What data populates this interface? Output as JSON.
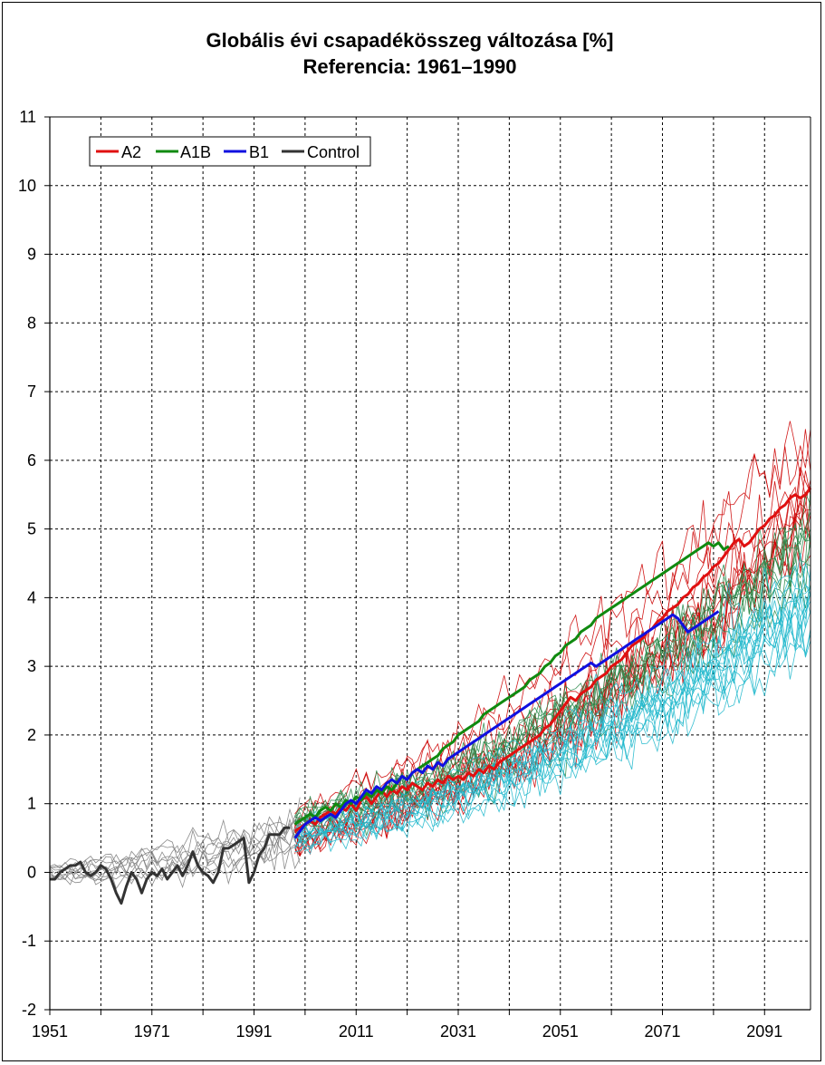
{
  "chart_data": {
    "type": "line",
    "title": "Globális évi csapadékösszeg változása [%]",
    "subtitle": "Referencia: 1961–1990",
    "xlabel": "",
    "ylabel": "",
    "xlim": [
      1951,
      2100
    ],
    "ylim": [
      -2,
      11
    ],
    "x_ticks": [
      1951,
      1961,
      1971,
      1981,
      1991,
      2001,
      2011,
      2021,
      2031,
      2041,
      2051,
      2061,
      2071,
      2081,
      2091
    ],
    "x_tick_labels": [
      "1951",
      "1971",
      "1991",
      "2011",
      "2031",
      "2051",
      "2071",
      "2091"
    ],
    "x_tick_label_values": [
      1951,
      1971,
      1991,
      2011,
      2031,
      2051,
      2071,
      2091
    ],
    "y_ticks": [
      -2,
      -1,
      0,
      1,
      2,
      3,
      4,
      5,
      6,
      7,
      8,
      9,
      10,
      11
    ],
    "y_tick_labels": [
      "-2",
      "-1",
      "0",
      "1",
      "2",
      "3",
      "4",
      "5",
      "6",
      "7",
      "8",
      "9",
      "10",
      "11"
    ],
    "grid": true,
    "legend_position": "top-left",
    "series": [
      {
        "name": "Control",
        "color": "#333333",
        "x_start": 1951,
        "values": [
          -0.1,
          -0.1,
          0.0,
          0.05,
          0.1,
          0.1,
          0.15,
          0.0,
          -0.05,
          0.0,
          0.1,
          0.05,
          -0.1,
          -0.3,
          -0.45,
          -0.2,
          0.0,
          -0.1,
          -0.3,
          -0.1,
          0.0,
          -0.05,
          0.05,
          -0.1,
          0.0,
          0.1,
          -0.05,
          0.1,
          0.3,
          0.1,
          0.0,
          -0.05,
          -0.15,
          0.0,
          0.35,
          0.35,
          0.4,
          0.45,
          0.5,
          -0.15,
          0.0,
          0.25,
          0.35,
          0.55,
          0.55,
          0.55,
          0.65,
          0.65
        ]
      },
      {
        "name": "A2",
        "color": "#e01010",
        "x_start": 1999,
        "values": [
          0.6,
          0.65,
          0.7,
          0.75,
          0.7,
          0.8,
          0.85,
          0.9,
          0.85,
          0.95,
          0.9,
          1.0,
          0.9,
          1.05,
          1.1,
          1.0,
          1.1,
          1.2,
          1.1,
          1.2,
          1.15,
          1.25,
          1.2,
          1.3,
          1.25,
          1.2,
          1.3,
          1.25,
          1.35,
          1.3,
          1.4,
          1.35,
          1.4,
          1.35,
          1.45,
          1.4,
          1.5,
          1.45,
          1.55,
          1.5,
          1.6,
          1.65,
          1.7,
          1.75,
          1.8,
          1.85,
          1.9,
          1.95,
          2.0,
          2.1,
          2.15,
          2.25,
          2.35,
          2.45,
          2.55,
          2.5,
          2.6,
          2.65,
          2.7,
          2.8,
          2.85,
          2.9,
          3.0,
          3.05,
          3.1,
          3.2,
          3.3,
          3.35,
          3.4,
          3.5,
          3.55,
          3.65,
          3.7,
          3.8,
          3.85,
          3.9,
          4.0,
          4.05,
          4.15,
          4.2,
          4.3,
          4.35,
          4.45,
          4.5,
          4.6,
          4.7,
          4.8,
          4.85,
          4.75,
          4.8,
          4.9,
          5.0,
          5.05,
          5.15,
          5.2,
          5.3,
          5.35,
          5.45,
          5.5,
          5.45,
          5.5,
          5.6
        ]
      },
      {
        "name": "A1B",
        "color": "#108a10",
        "x_start": 1999,
        "values": [
          0.7,
          0.75,
          0.8,
          0.85,
          0.8,
          0.9,
          0.95,
          0.9,
          1.0,
          0.95,
          1.05,
          1.0,
          1.1,
          1.05,
          1.15,
          1.1,
          1.2,
          1.15,
          1.25,
          1.2,
          1.3,
          1.4,
          1.35,
          1.45,
          1.5,
          1.55,
          1.6,
          1.65,
          1.7,
          1.8,
          1.85,
          1.9,
          2.0,
          2.05,
          2.1,
          2.15,
          2.2,
          2.3,
          2.35,
          2.4,
          2.45,
          2.5,
          2.55,
          2.6,
          2.65,
          2.7,
          2.8,
          2.85,
          2.9,
          3.0,
          3.05,
          3.15,
          3.2,
          3.3,
          3.35,
          3.4,
          3.5,
          3.55,
          3.6,
          3.7,
          3.75,
          3.8,
          3.85,
          3.9,
          3.95,
          4.0,
          4.05,
          4.1,
          4.15,
          4.2,
          4.25,
          4.3,
          4.35,
          4.4,
          4.45,
          4.5,
          4.55,
          4.6,
          4.65,
          4.7,
          4.75,
          4.8,
          4.75,
          4.8,
          4.7,
          4.75
        ]
      },
      {
        "name": "B1",
        "color": "#1010e0",
        "x_start": 1999,
        "values": [
          0.5,
          0.6,
          0.7,
          0.75,
          0.8,
          0.75,
          0.8,
          0.85,
          0.8,
          0.9,
          1.0,
          1.05,
          1.0,
          1.1,
          1.2,
          1.15,
          1.25,
          1.2,
          1.3,
          1.35,
          1.3,
          1.4,
          1.35,
          1.45,
          1.5,
          1.45,
          1.55,
          1.5,
          1.6,
          1.55,
          1.65,
          1.7,
          1.75,
          1.8,
          1.85,
          1.9,
          1.95,
          2.0,
          2.05,
          2.1,
          2.15,
          2.2,
          2.25,
          2.3,
          2.35,
          2.4,
          2.45,
          2.5,
          2.55,
          2.6,
          2.65,
          2.7,
          2.75,
          2.8,
          2.85,
          2.9,
          2.95,
          3.0,
          3.05,
          3.0,
          3.05,
          3.1,
          3.15,
          3.2,
          3.25,
          3.3,
          3.35,
          3.4,
          3.45,
          3.5,
          3.55,
          3.6,
          3.65,
          3.7,
          3.75,
          3.7,
          3.6,
          3.5,
          3.55,
          3.6,
          3.65,
          3.7,
          3.75,
          3.8
        ]
      }
    ],
    "ensemble_members": [
      {
        "group": "Control",
        "color": "#7f7f7f",
        "count": 10,
        "x_from": 1951,
        "x_to": 2000,
        "mean_start": 0.0,
        "mean_end": 0.6,
        "spread": 0.55
      },
      {
        "group": "A2",
        "color": "#cc0000",
        "count": 12,
        "x_from": 1999,
        "x_to": 2100,
        "mean_start": 0.6,
        "mean_end": 5.6,
        "spread": 1.4
      },
      {
        "group": "A1B",
        "color": "#2a8a4a",
        "count": 10,
        "x_from": 1999,
        "x_to": 2100,
        "mean_start": 0.7,
        "mean_end": 4.7,
        "spread": 1.2
      },
      {
        "group": "B1",
        "color": "#20b8cc",
        "count": 14,
        "x_from": 1999,
        "x_to": 2100,
        "mean_start": 0.5,
        "mean_end": 3.8,
        "spread": 1.0
      }
    ],
    "legend": [
      {
        "label": "A2",
        "color": "#e01010"
      },
      {
        "label": "A1B",
        "color": "#108a10"
      },
      {
        "label": "B1",
        "color": "#1010e0"
      },
      {
        "label": "Control",
        "color": "#333333"
      }
    ]
  }
}
